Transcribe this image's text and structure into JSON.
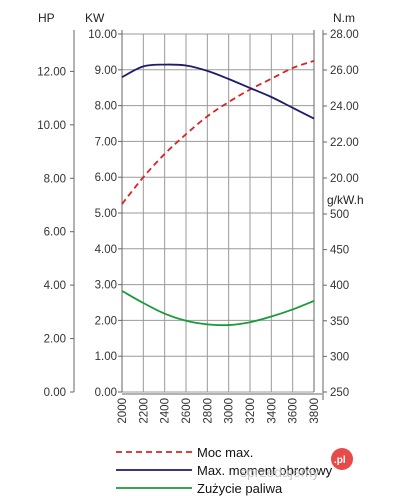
{
  "chart_data": {
    "type": "line",
    "x_ticks": [
      "2000",
      "2200",
      "2400",
      "2600",
      "2800",
      "3000",
      "3200",
      "3400",
      "3600",
      "3800"
    ],
    "axes": {
      "hp": {
        "label": "HP",
        "ticks": [
          "0.00",
          "2.00",
          "4.00",
          "6.00",
          "8.00",
          "10.00",
          "12.00"
        ],
        "range": [
          0,
          13.4
        ]
      },
      "kw": {
        "label": "KW",
        "ticks": [
          "0.00",
          "1.00",
          "2.00",
          "3.00",
          "4.00",
          "5.00",
          "6.00",
          "7.00",
          "8.00",
          "9.00",
          "10.00"
        ],
        "range": [
          0,
          10
        ]
      },
      "nm": {
        "label": "N.m",
        "ticks": [
          "20.00",
          "22.00",
          "24.00",
          "26.00",
          "28.00"
        ],
        "range": [
          18,
          28
        ]
      },
      "gkwh": {
        "label": "g/kW.h",
        "ticks": [
          "250",
          "300",
          "350",
          "400",
          "450",
          "500"
        ],
        "range": [
          250,
          500
        ]
      }
    },
    "series": [
      {
        "name": "Moc max.",
        "axis": "kw",
        "color": "#dd2222",
        "dash": true,
        "x": [
          2000,
          2200,
          2400,
          2600,
          2800,
          3000,
          3200,
          3400,
          3600,
          3800
        ],
        "y": [
          5.25,
          6.0,
          6.65,
          7.2,
          7.7,
          8.1,
          8.45,
          8.75,
          9.05,
          9.25
        ]
      },
      {
        "name": "Max. moment obrotowy",
        "axis": "nm",
        "color": "#1c1c6e",
        "dash": false,
        "x": [
          2000,
          2200,
          2400,
          2600,
          2800,
          3000,
          3200,
          3400,
          3600,
          3800
        ],
        "y": [
          25.6,
          26.2,
          26.3,
          26.25,
          25.95,
          25.5,
          25.0,
          24.5,
          23.9,
          23.3
        ]
      },
      {
        "name": "Zużycie paliwa",
        "axis": "gkwh",
        "color": "#1a9a3a",
        "dash": false,
        "x": [
          2000,
          2200,
          2400,
          2600,
          2800,
          3000,
          3200,
          3400,
          3600,
          3800
        ],
        "y": [
          392,
          375,
          360,
          350,
          345,
          344,
          348,
          356,
          366,
          378
        ]
      }
    ]
  },
  "watermark": {
    "badge": ".pl",
    "text": "sprzedajemy"
  }
}
